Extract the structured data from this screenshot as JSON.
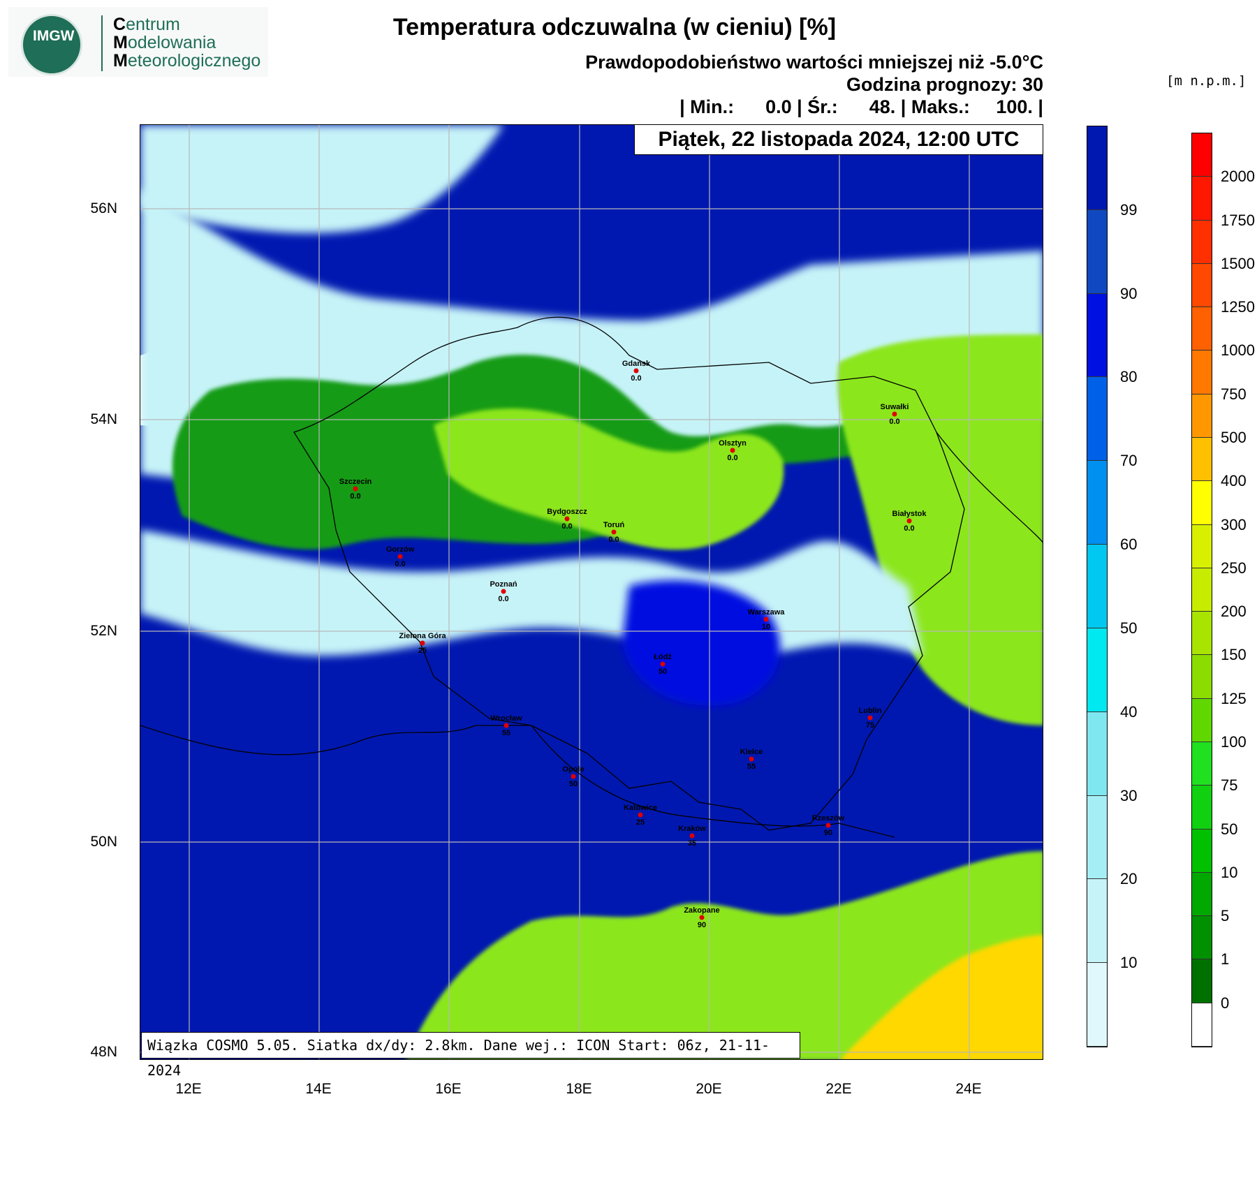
{
  "logo": {
    "mark": "IMGW",
    "line1_first": "C",
    "line1_rest": "entrum",
    "line2_first": "M",
    "line2_rest": "odelowania",
    "line3_first": "M",
    "line3_rest": "eteorologicznego"
  },
  "header": {
    "title": "Temperatura odczuwalna (w cieniu) [%]",
    "subtitle": "Prawdopodobieństwo wartości mniejszej niż -5.0°C",
    "forecast_hour": "Godzina prognozy: 30",
    "stats": "| Min.:      0.0 | Śr.:      48. | Maks.:     100. |"
  },
  "date_label": "Piątek, 22 listopada 2024, 12:00 UTC",
  "footer": "Wiązka COSMO 5.05. Siatka dx/dy: 2.8km. Dane wej.: ICON Start: 06z, 21-11-2024",
  "units_label": "[m n.p.m.]",
  "axes": {
    "lat_ticks": [
      "56N",
      "54N",
      "52N",
      "50N",
      "48N"
    ],
    "lon_ticks": [
      "12E",
      "14E",
      "16E",
      "18E",
      "20E",
      "22E",
      "24E"
    ]
  },
  "colors": {
    "white": "#ffffff",
    "prob_10": "#e0f8fb",
    "prob_20": "#c6f3f8",
    "prob_30": "#a6eef5",
    "prob_40": "#7ee7f0",
    "prob_50": "#00e8f0",
    "prob_60": "#00c8f0",
    "prob_70": "#0090f0",
    "prob_80": "#0060e8",
    "prob_90": "#0010e0",
    "prob_99": "#0f48c0",
    "prob_max": "#0018b0",
    "terrain_green_dark": "#129b12",
    "terrain_green": "#3ad43a",
    "terrain_lime": "#8ce61a",
    "terrain_yellow": "#ffd800",
    "terrain_orange": "#ff8a00"
  },
  "legend_probability": {
    "labels": [
      "99",
      "90",
      "80",
      "70",
      "60",
      "50",
      "40",
      "30",
      "20",
      "10"
    ],
    "colors": [
      "#0018b0",
      "#0f48c0",
      "#0010e0",
      "#0060e8",
      "#0090f0",
      "#00c8f0",
      "#00e8f0",
      "#7ee7f0",
      "#a6eef5",
      "#c6f3f8",
      "#e0f8fb"
    ]
  },
  "legend_terrain": {
    "labels": [
      "2000",
      "1750",
      "1500",
      "1250",
      "1000",
      "750",
      "500",
      "400",
      "300",
      "250",
      "200",
      "150",
      "125",
      "100",
      "75",
      "50",
      "10",
      "5",
      "1",
      "0"
    ],
    "colors": [
      "#ff0000",
      "#ff1800",
      "#ff3000",
      "#ff4800",
      "#ff6000",
      "#ff7800",
      "#ff9800",
      "#ffc000",
      "#ffff00",
      "#d8f000",
      "#c8ec00",
      "#a8e400",
      "#8cdc00",
      "#60d800",
      "#20e020",
      "#10d010",
      "#00c000",
      "#00a800",
      "#009000",
      "#007000",
      "#ffffff"
    ]
  },
  "cities": [
    {
      "name": "Gdańsk",
      "value": "0.0"
    },
    {
      "name": "Suwałki",
      "value": "0.0"
    },
    {
      "name": "Olsztyn",
      "value": "0.0"
    },
    {
      "name": "Szczecin",
      "value": "0.0"
    },
    {
      "name": "Bydgoszcz",
      "value": "0.0"
    },
    {
      "name": "Toruń",
      "value": "0.0"
    },
    {
      "name": "Białystok",
      "value": "0.0"
    },
    {
      "name": "Gorzów",
      "value": "0.0"
    },
    {
      "name": "Poznań",
      "value": "0.0"
    },
    {
      "name": "Warszawa",
      "value": "10"
    },
    {
      "name": "Zielona Góra",
      "value": "25"
    },
    {
      "name": "Łódź",
      "value": "50"
    },
    {
      "name": "Lublin",
      "value": "75"
    },
    {
      "name": "Wrocław",
      "value": "55"
    },
    {
      "name": "Kielce",
      "value": "55"
    },
    {
      "name": "Opole",
      "value": "50"
    },
    {
      "name": "Katowice",
      "value": "25"
    },
    {
      "name": "Kraków",
      "value": "35"
    },
    {
      "name": "Rzeszów",
      "value": "90"
    },
    {
      "name": "Zakopane",
      "value": "90"
    }
  ]
}
